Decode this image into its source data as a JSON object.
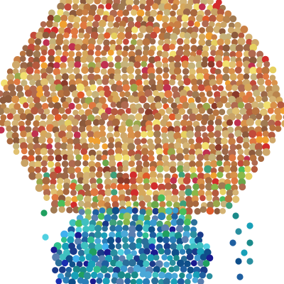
{
  "background": "#ffffff",
  "palettes": {
    "warm": [
      "#c9a366",
      "#b9844d",
      "#d4b374",
      "#a8683e",
      "#c97f44",
      "#d9924a",
      "#b55a3e",
      "#c24a3a",
      "#e0c070",
      "#a07a52",
      "#8c5a3c",
      "#d6a85b",
      "#c6b27a",
      "#b8743f",
      "#e07840",
      "#9c6848",
      "#cfa86a",
      "#b06a50"
    ],
    "warmAccent": [
      "#d22c2c",
      "#e05a2a",
      "#f0a030",
      "#e6d060",
      "#9aa84a",
      "#8a3a2a",
      "#f2e070",
      "#c03050"
    ],
    "cool": [
      "#2a7fb8",
      "#1f5fa0",
      "#3a9ad0",
      "#18a0b8",
      "#0f4f8a",
      "#2a8fa0",
      "#4aa8d8",
      "#1a3a8a",
      "#3fc0c0",
      "#2a6f9a",
      "#5a7fb0",
      "#1a8a8a"
    ],
    "coolAccent": [
      "#1a2fb0",
      "#30c090",
      "#50d0e0",
      "#20a060",
      "#40b0f0",
      "#1a1a90"
    ],
    "green": [
      "#6aa84a",
      "#4abf5a",
      "#8ab84a",
      "#a0c060",
      "#3fa07a",
      "#7fc06a"
    ]
  }
}
